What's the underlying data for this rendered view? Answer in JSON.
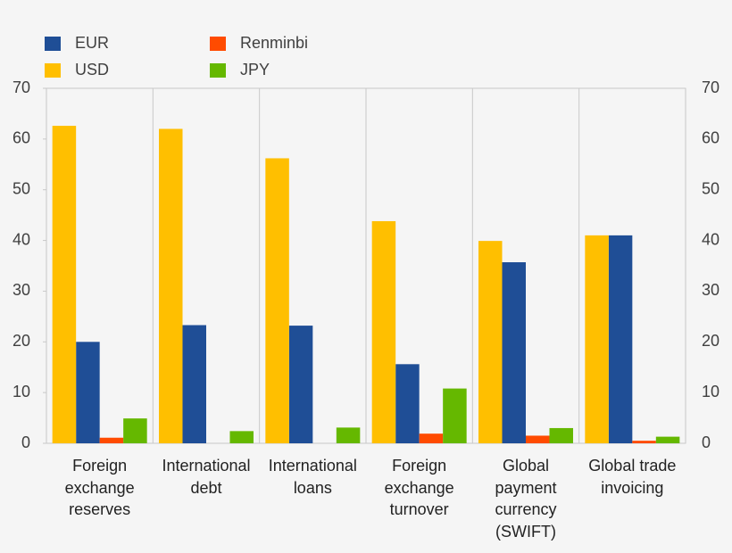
{
  "chart_data": {
    "type": "bar",
    "categories": [
      "Foreign\nexchange\nreserves",
      "International\ndebt",
      "International\nloans",
      "Foreign\nexchange\nturnover",
      "Global\npayment\ncurrency\n(SWIFT)",
      "Global trade\ninvoicing"
    ],
    "series": [
      {
        "name": "EUR",
        "color": "#1f4e96",
        "values": [
          20,
          23.3,
          23.2,
          15.6,
          35.7,
          41
        ]
      },
      {
        "name": "Renminbi",
        "color": "#ff4b00",
        "values": [
          1.1,
          0,
          0,
          1.9,
          1.5,
          0.5
        ]
      },
      {
        "name": "USD",
        "color": "#ffbf00",
        "values": [
          62.6,
          62,
          56.2,
          43.8,
          39.9,
          41
        ]
      },
      {
        "name": "JPY",
        "color": "#65b800",
        "values": [
          4.9,
          2.4,
          3.1,
          10.8,
          3,
          1.3
        ]
      }
    ],
    "ylim": [
      0,
      70
    ],
    "yticks": [
      0,
      10,
      20,
      30,
      40,
      50,
      60,
      70
    ]
  }
}
